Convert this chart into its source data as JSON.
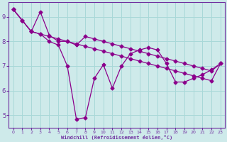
{
  "xlabel": "Windchill (Refroidissement éolien,°C)",
  "background_color": "#ceeaea",
  "line_color": "#8b008b",
  "grid_color": "#a8d8d8",
  "axis_color": "#7030a0",
  "ylim": [
    4.5,
    9.6
  ],
  "xlim": [
    -0.5,
    23.5
  ],
  "yticks": [
    5,
    6,
    7,
    8,
    9
  ],
  "xticks": [
    0,
    1,
    2,
    3,
    4,
    5,
    6,
    7,
    8,
    9,
    10,
    11,
    12,
    13,
    14,
    15,
    16,
    17,
    18,
    19,
    20,
    21,
    22,
    23
  ],
  "line1_x": [
    0,
    1,
    2,
    3,
    4,
    5,
    6,
    7,
    8,
    9,
    10,
    11,
    12,
    13,
    14,
    15,
    16,
    17,
    18,
    19,
    20,
    21,
    22,
    23
  ],
  "line1_y": [
    9.3,
    8.85,
    8.4,
    9.2,
    8.25,
    8.0,
    8.0,
    7.85,
    8.2,
    8.1,
    8.0,
    7.9,
    7.8,
    7.7,
    7.6,
    7.5,
    7.4,
    7.3,
    7.2,
    7.1,
    7.0,
    6.9,
    6.8,
    7.1
  ],
  "line2_x": [
    0,
    1,
    2,
    3,
    4,
    5,
    6,
    7,
    8,
    9,
    10,
    11,
    12,
    13,
    14,
    15,
    16,
    17,
    18,
    19,
    20,
    21,
    22,
    23
  ],
  "line2_y": [
    9.3,
    8.85,
    8.4,
    8.3,
    8.2,
    8.1,
    8.0,
    7.9,
    7.8,
    7.7,
    7.6,
    7.5,
    7.4,
    7.3,
    7.2,
    7.1,
    7.0,
    6.9,
    6.8,
    6.7,
    6.6,
    6.5,
    6.4,
    7.1
  ],
  "line3_x": [
    0,
    1,
    2,
    3,
    4,
    5,
    6,
    7,
    8,
    9,
    10,
    11,
    12,
    13,
    14,
    15,
    16,
    17,
    18,
    19,
    20,
    21,
    22,
    23
  ],
  "line3_y": [
    9.3,
    8.85,
    8.4,
    8.3,
    8.0,
    7.85,
    7.0,
    4.85,
    4.9,
    6.5,
    7.05,
    6.1,
    7.0,
    7.5,
    7.65,
    7.75,
    7.65,
    7.1,
    6.35,
    6.35,
    6.5,
    6.65,
    6.85,
    7.1
  ],
  "marker": "D",
  "markersize": 2.5,
  "linewidth": 0.9
}
